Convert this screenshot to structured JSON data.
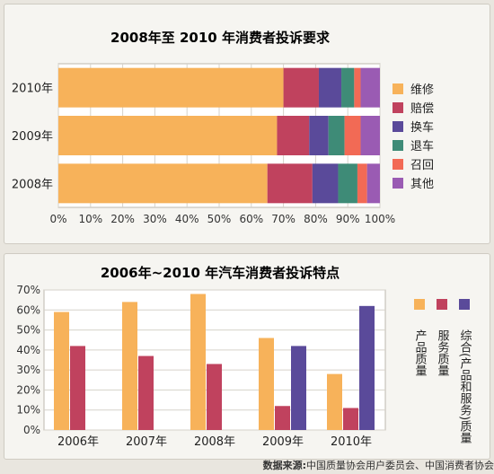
{
  "chart_data": [
    {
      "type": "bar",
      "orientation": "horizontal",
      "stacked": true,
      "title": "2008年至 2010 年消费者投诉要求",
      "categories": [
        "2010年",
        "2009年",
        "2008年"
      ],
      "series": [
        {
          "name": "维修",
          "values": [
            70,
            68,
            65
          ],
          "color": "#f7b25a"
        },
        {
          "name": "赔偿",
          "values": [
            11,
            10,
            14
          ],
          "color": "#c0425e"
        },
        {
          "name": "换车",
          "values": [
            7,
            6,
            8
          ],
          "color": "#5a4a9a"
        },
        {
          "name": "退车",
          "values": [
            4,
            5,
            6
          ],
          "color": "#3e8b77"
        },
        {
          "name": "召回",
          "values": [
            2,
            5,
            3
          ],
          "color": "#f26a55"
        },
        {
          "name": "其他",
          "values": [
            6,
            6,
            4
          ],
          "color": "#9a5bb3"
        }
      ],
      "xlim": [
        0,
        100
      ],
      "xticks": [
        "0%",
        "10%",
        "20%",
        "30%",
        "40%",
        "50%",
        "60%",
        "70%",
        "80%",
        "90%",
        "100%"
      ],
      "legend": "right"
    },
    {
      "type": "bar",
      "title": "2006年~2010 年汽车消费者投诉特点",
      "categories": [
        "2006年",
        "2007年",
        "2008年",
        "2009年",
        "2010年"
      ],
      "series": [
        {
          "name": "产品质量",
          "values": [
            59,
            64,
            68,
            46,
            28
          ],
          "color": "#f7b25a"
        },
        {
          "name": "服务质量",
          "values": [
            42,
            37,
            33,
            12,
            11
          ],
          "color": "#c0425e"
        },
        {
          "name": "综合(产品和服务)质量",
          "values": [
            null,
            null,
            null,
            42,
            62
          ],
          "color": "#5a4a9a"
        }
      ],
      "ylim": [
        0,
        70
      ],
      "yticks": [
        "0%",
        "10%",
        "20%",
        "30%",
        "40%",
        "50%",
        "60%",
        "70%"
      ],
      "legend": "right"
    }
  ],
  "source": {
    "label": "数据来源:",
    "text": "中国质量协会用户委员会、中国消费者协会"
  }
}
